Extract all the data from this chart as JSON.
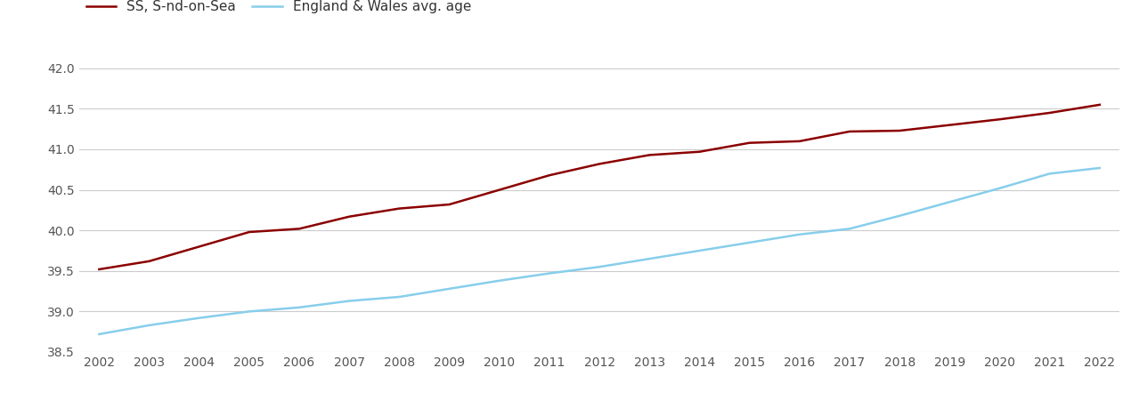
{
  "years": [
    2002,
    2003,
    2004,
    2005,
    2006,
    2007,
    2008,
    2009,
    2010,
    2011,
    2012,
    2013,
    2014,
    2015,
    2016,
    2017,
    2018,
    2019,
    2020,
    2021,
    2022
  ],
  "southend": [
    39.52,
    39.62,
    39.8,
    39.98,
    40.02,
    40.17,
    40.27,
    40.32,
    40.5,
    40.68,
    40.82,
    40.93,
    40.97,
    41.08,
    41.1,
    41.22,
    41.23,
    41.3,
    41.37,
    41.45,
    41.55
  ],
  "england_wales": [
    38.72,
    38.83,
    38.92,
    39.0,
    39.05,
    39.13,
    39.18,
    39.28,
    39.38,
    39.47,
    39.55,
    39.65,
    39.75,
    39.85,
    39.95,
    40.02,
    40.18,
    40.35,
    40.52,
    40.7,
    40.77
  ],
  "southend_color": "#8B0000",
  "england_wales_color": "#87CEEB",
  "southend_label": "SS, S-nd-on-Sea",
  "england_wales_label": "England & Wales avg. age",
  "ylim": [
    38.5,
    42.25
  ],
  "yticks": [
    38.5,
    39.0,
    39.5,
    40.0,
    40.5,
    41.0,
    41.5,
    42.0
  ],
  "background_color": "#ffffff",
  "grid_color": "#cccccc",
  "line_width": 1.8,
  "legend_fontsize": 11,
  "tick_fontsize": 10,
  "tick_color": "#555555"
}
